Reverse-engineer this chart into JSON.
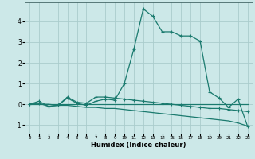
{
  "xlabel": "Humidex (Indice chaleur)",
  "ylabel": "",
  "background_color": "#cce8e8",
  "grid_color": "#aacccc",
  "line_color": "#1a7a6e",
  "xlim": [
    -0.5,
    23.5
  ],
  "ylim": [
    -1.4,
    4.9
  ],
  "yticks": [
    -1,
    0,
    1,
    2,
    3,
    4
  ],
  "xticks": [
    0,
    1,
    2,
    3,
    4,
    5,
    6,
    7,
    8,
    9,
    10,
    11,
    12,
    13,
    14,
    15,
    16,
    17,
    18,
    19,
    20,
    21,
    22,
    23
  ],
  "line1_x": [
    0,
    1,
    2,
    3,
    4,
    5,
    6,
    7,
    8,
    9,
    10,
    11,
    12,
    13,
    14,
    15,
    16,
    17,
    18,
    19,
    20,
    21,
    22,
    23
  ],
  "line1_y": [
    0.0,
    0.15,
    -0.1,
    -0.05,
    0.3,
    0.05,
    -0.05,
    0.15,
    0.25,
    0.2,
    1.0,
    2.65,
    4.6,
    4.25,
    3.5,
    3.5,
    3.3,
    3.3,
    3.05,
    0.6,
    0.3,
    -0.15,
    0.25,
    -1.05
  ],
  "line2_x": [
    0,
    1,
    2,
    3,
    4,
    5,
    6,
    7,
    8,
    9,
    10,
    11,
    12,
    13,
    14,
    15,
    16,
    17,
    18,
    19,
    20,
    21,
    22,
    23
  ],
  "line2_y": [
    0.0,
    0.05,
    -0.1,
    -0.05,
    0.35,
    0.1,
    0.05,
    0.35,
    0.35,
    0.3,
    0.25,
    0.2,
    0.15,
    0.1,
    0.05,
    0.0,
    -0.05,
    -0.1,
    -0.15,
    -0.2,
    -0.2,
    -0.25,
    -0.3,
    -0.35
  ],
  "line3_x": [
    0,
    1,
    2,
    3,
    4,
    5,
    6,
    7,
    8,
    9,
    10,
    11,
    12,
    13,
    14,
    15,
    16,
    17,
    18,
    19,
    20,
    21,
    22,
    23
  ],
  "line3_y": [
    0.0,
    0.0,
    0.0,
    -0.05,
    -0.05,
    -0.1,
    -0.15,
    -0.15,
    -0.2,
    -0.2,
    -0.25,
    -0.3,
    -0.35,
    -0.4,
    -0.45,
    -0.5,
    -0.55,
    -0.6,
    -0.65,
    -0.7,
    -0.75,
    -0.8,
    -0.9,
    -1.05
  ],
  "line4_x": [
    0,
    23
  ],
  "line4_y": [
    0.0,
    0.0
  ]
}
